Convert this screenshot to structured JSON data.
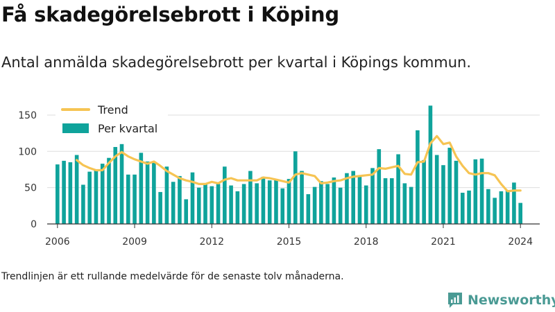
{
  "header": {
    "title": "Få skadegörelsebrott i Köping",
    "subtitle": "Antal anmälda skadegörelsebrott per kvartal i Köpings kommun."
  },
  "footer": {
    "note": "Trendlinjen är ett rullande medelvärde för de senaste tolv månaderna.",
    "brand": "Newsworthy"
  },
  "icons": {
    "brand": "newsworthy-logo-icon"
  },
  "colors": {
    "bars": "#0fa39b",
    "trend": "#f6c453",
    "axis": "#333333",
    "grid": "#dddddd",
    "brand": "#4a9a94"
  },
  "chart_data": {
    "type": "bar",
    "title": "Få skadegörelsebrott i Köping",
    "xlabel": "",
    "ylabel": "",
    "ylim": [
      0,
      170
    ],
    "xlim": [
      2005.6,
      2024.75
    ],
    "grid": "horizontal",
    "legend_placement": "top-left",
    "y_ticks": [
      0,
      50,
      100,
      150
    ],
    "x_ticks": [
      "2006",
      "2009",
      "2012",
      "2015",
      "2018",
      "2021",
      "2024"
    ],
    "start_year": 2006,
    "series": [
      {
        "name": "Per kvartal",
        "type": "bar",
        "values": [
          82,
          87,
          85,
          95,
          54,
          72,
          75,
          83,
          91,
          106,
          110,
          68,
          68,
          98,
          86,
          86,
          44,
          79,
          58,
          66,
          34,
          71,
          50,
          56,
          52,
          55,
          79,
          53,
          45,
          55,
          73,
          56,
          65,
          60,
          62,
          49,
          62,
          100,
          73,
          41,
          51,
          59,
          55,
          64,
          50,
          70,
          73,
          65,
          53,
          77,
          103,
          63,
          63,
          96,
          56,
          51,
          129,
          88,
          163,
          95,
          81,
          105,
          87,
          43,
          46,
          89,
          90,
          48,
          36,
          45,
          46,
          57,
          29
        ]
      },
      {
        "name": "Trend",
        "type": "line",
        "values": [
          null,
          null,
          null,
          88,
          81,
          77,
          74,
          74,
          84,
          93,
          99,
          93,
          89,
          86,
          83,
          86,
          80,
          73,
          68,
          63,
          60,
          58,
          55,
          55,
          58,
          56,
          61,
          63,
          60,
          60,
          60,
          60,
          64,
          63,
          61,
          59,
          57,
          68,
          70,
          68,
          66,
          56,
          57,
          59,
          60,
          63,
          65,
          66,
          67,
          68,
          77,
          76,
          78,
          80,
          69,
          68,
          85,
          86,
          111,
          121,
          110,
          112,
          93,
          80,
          70,
          68,
          70,
          70,
          67,
          55,
          45,
          46,
          46
        ]
      }
    ]
  }
}
